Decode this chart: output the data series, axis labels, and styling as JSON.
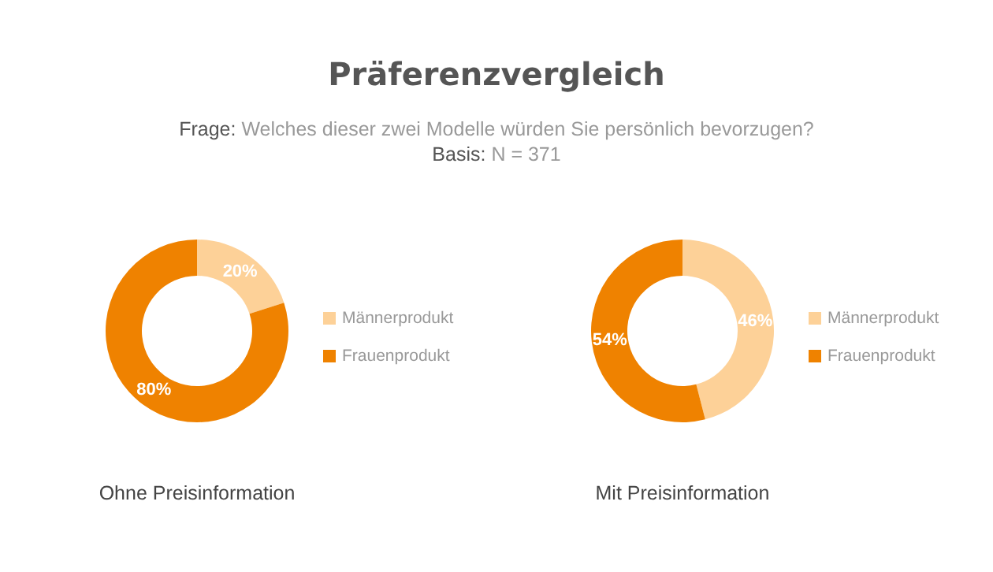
{
  "chart_data": [
    {
      "type": "donut",
      "title": "Präferenzvergleich",
      "subtitle": "Frage: Welches dieser zwei Modelle würden Sie persönlich bevorzugen?\nBasis: N = 371",
      "xlabel": "Ohne Preisinformation",
      "categories": [
        "Männerprodukt",
        "Frauenprodukt"
      ],
      "values": [
        20,
        80
      ],
      "value_labels": [
        "20%",
        "80%"
      ],
      "colors": [
        "#fdd198",
        "#ef8200"
      ],
      "legend": "right"
    },
    {
      "type": "donut",
      "xlabel": "Mit Preisinformation",
      "categories": [
        "Männerprodukt",
        "Frauenprodukt"
      ],
      "values": [
        46,
        54
      ],
      "value_labels": [
        "46%",
        "54%"
      ],
      "colors": [
        "#fdd198",
        "#ef8200"
      ],
      "legend": "right"
    }
  ]
}
